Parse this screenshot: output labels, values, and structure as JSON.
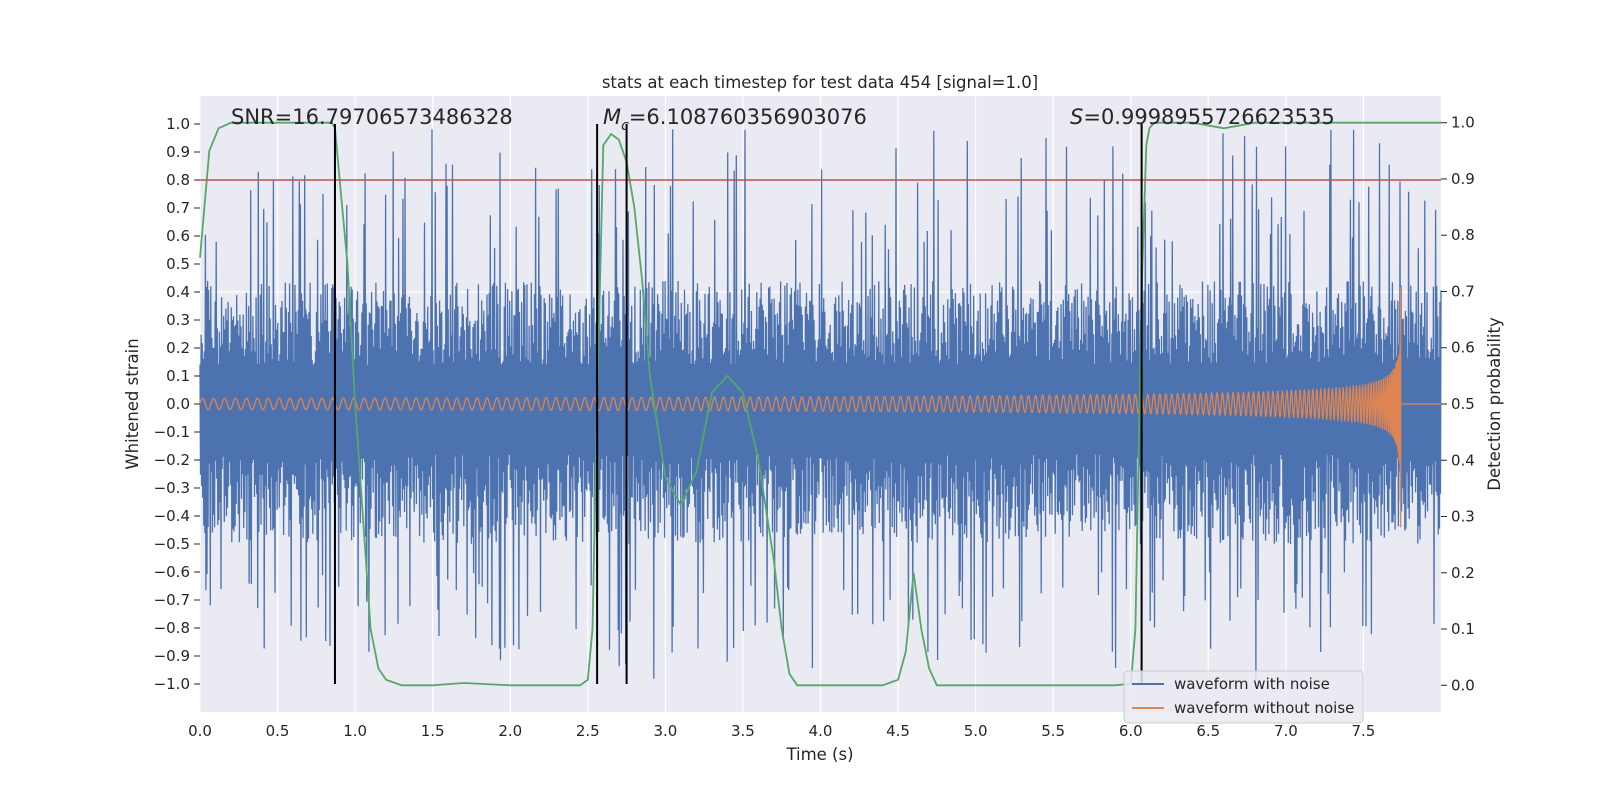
{
  "chart_data": {
    "type": "line",
    "title": "stats at each timestep for test data 454 [signal=1.0]",
    "xlabel": "Time (s)",
    "ylabel": "Whitened strain",
    "y2label": "Detection probability",
    "xlim": [
      0.0,
      8.0
    ],
    "ylim": [
      -1.1,
      1.1
    ],
    "y2lim": [
      -0.0475,
      1.0475
    ],
    "xticks": [
      0.0,
      0.5,
      1.0,
      1.5,
      2.0,
      2.5,
      3.0,
      3.5,
      4.0,
      4.5,
      5.0,
      5.5,
      6.0,
      6.5,
      7.0,
      7.5
    ],
    "xtick_labels": [
      "0.0",
      "0.5",
      "1.0",
      "1.5",
      "2.0",
      "2.5",
      "3.0",
      "3.5",
      "4.0",
      "4.5",
      "5.0",
      "5.5",
      "6.0",
      "6.5",
      "7.0",
      "7.5"
    ],
    "yticks": [
      1.0,
      0.9,
      0.8,
      0.7,
      0.6,
      0.5,
      0.4,
      0.3,
      0.2,
      0.1,
      0.0,
      -0.1,
      -0.2,
      -0.3,
      -0.4,
      -0.5,
      -0.6,
      -0.7,
      -0.8,
      -0.9,
      -1.0
    ],
    "ytick_labels": [
      "1.0",
      "0.9",
      "0.8",
      "0.7",
      "0.6",
      "0.5",
      "0.4",
      "0.3",
      "0.2",
      "0.1",
      "0.0",
      "−0.1",
      "−0.2",
      "−0.3",
      "−0.4",
      "−0.5",
      "−0.6",
      "−0.7",
      "−0.8",
      "−0.9",
      "−1.0"
    ],
    "y2ticks": [
      1.0,
      0.9,
      0.8,
      0.7,
      0.6,
      0.5,
      0.4,
      0.3,
      0.2,
      0.1,
      0.0
    ],
    "y2tick_labels": [
      "1.0",
      "0.9",
      "0.8",
      "0.7",
      "0.6",
      "0.5",
      "0.4",
      "0.3",
      "0.2",
      "0.1",
      "0.0"
    ],
    "threshold": {
      "value": 0.8,
      "axis": "left",
      "color": "#c44e52"
    },
    "vlines": [
      0.87,
      2.56,
      2.75,
      6.07
    ],
    "annotations": [
      {
        "prefix": "SNR=",
        "italic": "",
        "sub": "",
        "value": "16.79706573486328"
      },
      {
        "prefix": "",
        "italic": "M",
        "sub": "c",
        "value": "=6.108760356903076"
      },
      {
        "prefix": "",
        "italic": "S",
        "sub": "",
        "value": "=0.9998955726623535"
      }
    ],
    "series": [
      {
        "name": "waveform with noise",
        "color": "#4c72b0",
        "axis": "left",
        "kind": "noise",
        "envelope": {
          "typical_amplitude": 0.4,
          "peak_extremes": [
            1.0,
            -1.0
          ]
        }
      },
      {
        "name": "waveform without noise",
        "color": "#dd8452",
        "axis": "left",
        "kind": "chirp",
        "x_range": [
          0.0,
          7.74
        ],
        "amplitude_start": 0.02,
        "amplitude_peak": [
          0.38,
          -0.44
        ],
        "merger_time": 7.74
      },
      {
        "name": "detection probability",
        "color": "#55a868",
        "axis": "right",
        "x": [
          0.0,
          0.06,
          0.12,
          0.2,
          0.3,
          0.5,
          0.7,
          0.85,
          0.87,
          0.9,
          0.95,
          1.0,
          1.05,
          1.1,
          1.15,
          1.2,
          1.3,
          1.5,
          1.7,
          2.0,
          2.2,
          2.45,
          2.5,
          2.53,
          2.56,
          2.6,
          2.65,
          2.7,
          2.75,
          2.8,
          2.85,
          2.9,
          3.0,
          3.1,
          3.2,
          3.3,
          3.4,
          3.5,
          3.6,
          3.7,
          3.75,
          3.8,
          3.85,
          3.9,
          4.0,
          4.2,
          4.4,
          4.5,
          4.55,
          4.6,
          4.65,
          4.7,
          4.75,
          4.8,
          5.0,
          5.5,
          5.9,
          6.0,
          6.03,
          6.07,
          6.1,
          6.12,
          6.15,
          6.2,
          6.4,
          6.6,
          6.8,
          7.0,
          7.5,
          8.0
        ],
        "y": [
          0.76,
          0.95,
          0.99,
          1.0,
          1.0,
          1.0,
          1.0,
          1.0,
          0.99,
          0.9,
          0.75,
          0.5,
          0.3,
          0.1,
          0.03,
          0.01,
          0.0,
          0.0,
          0.004,
          0.0,
          0.0,
          0.0,
          0.01,
          0.1,
          0.5,
          0.96,
          0.98,
          0.97,
          0.93,
          0.85,
          0.72,
          0.55,
          0.37,
          0.32,
          0.38,
          0.52,
          0.55,
          0.52,
          0.4,
          0.22,
          0.1,
          0.02,
          0.0,
          0.0,
          0.0,
          0.0,
          0.0,
          0.01,
          0.06,
          0.2,
          0.1,
          0.03,
          0.0,
          0.0,
          0.0,
          0.0,
          0.0,
          0.003,
          0.1,
          0.7,
          0.96,
          0.99,
          1.0,
          1.0,
          1.0,
          0.99,
          1.0,
          1.0,
          1.0,
          1.0
        ]
      }
    ],
    "legend": {
      "placement": "lower right",
      "entries": [
        "waveform with noise",
        "waveform without noise"
      ]
    }
  },
  "style": {
    "plot_background": "#eaeaf2",
    "grid_color": "#ffffff",
    "vline_color": "#000000"
  }
}
